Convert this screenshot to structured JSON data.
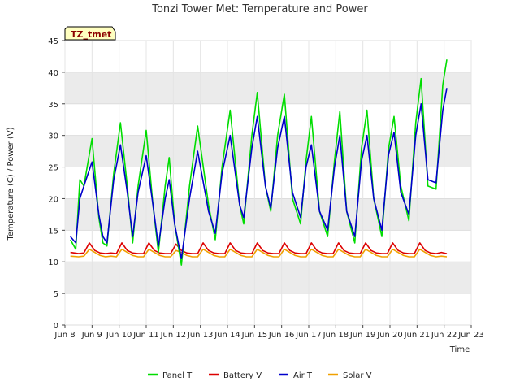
{
  "chart_data": {
    "type": "line",
    "title": "Tonzi Tower Met: Temperature and Power",
    "xlabel": "Time",
    "ylabel": "Temperature (C) / Power (V)",
    "site_tag": "TZ_tmet",
    "xlim": [
      8,
      23
    ],
    "ylim": [
      0,
      45
    ],
    "x_ticks": [
      8,
      9,
      10,
      11,
      12,
      13,
      14,
      15,
      16,
      17,
      18,
      19,
      20,
      21,
      22,
      23
    ],
    "x_tick_labels": [
      "Jun 8",
      "Jun 9",
      "Jun 10",
      "Jun 11",
      "Jun 12",
      "Jun 13",
      "Jun 14",
      "Jun 15",
      "Jun 16",
      "Jun 17",
      "Jun 18",
      "Jun 19",
      "Jun 20",
      "Jun 21",
      "Jun 22",
      "Jun 23"
    ],
    "y_ticks": [
      0,
      5,
      10,
      15,
      20,
      25,
      30,
      35,
      40,
      45
    ],
    "y_tick_labels": [
      "0",
      "5",
      "10",
      "15",
      "20",
      "25",
      "30",
      "35",
      "40",
      "45"
    ],
    "grid": true,
    "legend_position": "bottom",
    "series": [
      {
        "name": "Panel T",
        "color": "#00dd00",
        "x": [
          8.2,
          8.4,
          8.55,
          8.7,
          9.0,
          9.25,
          9.4,
          9.55,
          9.8,
          10.05,
          10.3,
          10.5,
          10.7,
          11.0,
          11.25,
          11.45,
          11.7,
          11.85,
          12.05,
          12.3,
          12.6,
          12.9,
          13.3,
          13.55,
          13.8,
          14.1,
          14.45,
          14.6,
          14.9,
          15.1,
          15.4,
          15.6,
          15.85,
          16.1,
          16.4,
          16.7,
          16.9,
          17.1,
          17.4,
          17.7,
          17.95,
          18.15,
          18.4,
          18.7,
          18.95,
          19.15,
          19.4,
          19.7,
          19.95,
          20.15,
          20.4,
          20.7,
          20.95,
          21.15,
          21.4,
          21.7,
          21.95,
          22.1
        ],
        "values": [
          13.5,
          12.0,
          23.0,
          22.0,
          29.5,
          17.0,
          13.0,
          12.5,
          24.0,
          32.0,
          22.0,
          13.0,
          22.0,
          30.8,
          19.0,
          11.5,
          22.0,
          26.5,
          16.0,
          9.5,
          22.0,
          31.5,
          19.0,
          13.5,
          25.0,
          34.0,
          19.0,
          16.0,
          30.0,
          36.8,
          22.0,
          18.0,
          30.0,
          36.5,
          20.0,
          16.0,
          26.0,
          33.0,
          18.0,
          14.0,
          26.0,
          33.8,
          18.0,
          13.0,
          28.0,
          34.0,
          20.0,
          14.0,
          28.0,
          33.0,
          22.0,
          16.5,
          32.0,
          39.0,
          22.0,
          21.5,
          38.0,
          42.0
        ]
      },
      {
        "name": "Battery V",
        "color": "#dd0000",
        "x": [
          8.2,
          8.5,
          8.7,
          8.9,
          9.1,
          9.3,
          9.5,
          9.7,
          9.9,
          10.1,
          10.3,
          10.5,
          10.7,
          10.9,
          11.1,
          11.3,
          11.5,
          11.7,
          11.9,
          12.1,
          12.3,
          12.5,
          12.7,
          12.9,
          13.1,
          13.3,
          13.5,
          13.7,
          13.9,
          14.1,
          14.3,
          14.5,
          14.7,
          14.9,
          15.1,
          15.3,
          15.5,
          15.7,
          15.9,
          16.1,
          16.3,
          16.5,
          16.7,
          16.9,
          17.1,
          17.3,
          17.5,
          17.7,
          17.9,
          18.1,
          18.3,
          18.5,
          18.7,
          18.9,
          19.1,
          19.3,
          19.5,
          19.7,
          19.9,
          20.1,
          20.3,
          20.5,
          20.7,
          20.9,
          21.1,
          21.3,
          21.5,
          21.7,
          21.9,
          22.1
        ],
        "values": [
          11.5,
          11.3,
          11.4,
          13.0,
          11.8,
          11.4,
          11.3,
          11.4,
          11.3,
          13.0,
          11.8,
          11.4,
          11.3,
          11.3,
          13.0,
          11.8,
          11.4,
          11.3,
          11.3,
          12.8,
          11.8,
          11.4,
          11.3,
          11.3,
          13.0,
          11.8,
          11.4,
          11.3,
          11.3,
          13.0,
          11.8,
          11.4,
          11.3,
          11.3,
          13.0,
          11.8,
          11.4,
          11.3,
          11.3,
          13.0,
          11.8,
          11.4,
          11.3,
          11.3,
          13.0,
          11.8,
          11.4,
          11.3,
          11.3,
          13.0,
          11.8,
          11.4,
          11.3,
          11.3,
          13.0,
          11.8,
          11.4,
          11.3,
          11.3,
          13.0,
          11.8,
          11.4,
          11.3,
          11.3,
          13.0,
          11.8,
          11.4,
          11.3,
          11.5,
          11.3
        ]
      },
      {
        "name": "Air T",
        "color": "#0000cc",
        "x": [
          8.2,
          8.4,
          8.55,
          8.7,
          9.0,
          9.25,
          9.4,
          9.55,
          9.8,
          10.05,
          10.3,
          10.5,
          10.7,
          11.0,
          11.25,
          11.45,
          11.7,
          11.85,
          12.05,
          12.3,
          12.6,
          12.9,
          13.3,
          13.55,
          13.8,
          14.1,
          14.45,
          14.6,
          14.9,
          15.1,
          15.4,
          15.6,
          15.85,
          16.1,
          16.4,
          16.7,
          16.9,
          17.1,
          17.4,
          17.7,
          17.95,
          18.15,
          18.4,
          18.7,
          18.95,
          19.15,
          19.4,
          19.7,
          19.95,
          20.15,
          20.4,
          20.7,
          20.95,
          21.15,
          21.4,
          21.7,
          21.95,
          22.1
        ],
        "values": [
          14.0,
          13.0,
          20.0,
          22.0,
          25.8,
          17.5,
          14.0,
          13.0,
          23.0,
          28.5,
          21.0,
          14.0,
          21.0,
          26.8,
          19.0,
          12.5,
          20.0,
          23.0,
          16.0,
          10.5,
          20.0,
          27.5,
          18.0,
          14.5,
          24.0,
          30.0,
          19.0,
          17.0,
          28.0,
          33.0,
          22.0,
          18.5,
          28.0,
          33.0,
          21.0,
          17.0,
          25.0,
          28.5,
          18.0,
          15.0,
          25.0,
          30.0,
          18.0,
          14.0,
          26.0,
          30.0,
          20.0,
          15.0,
          27.0,
          30.5,
          21.0,
          17.5,
          30.0,
          35.0,
          23.0,
          22.5,
          34.0,
          37.5
        ]
      },
      {
        "name": "Solar V",
        "color": "#f0a000",
        "x": [
          8.2,
          8.5,
          8.7,
          8.9,
          9.1,
          9.3,
          9.5,
          9.7,
          9.9,
          10.1,
          10.3,
          10.5,
          10.7,
          10.9,
          11.1,
          11.3,
          11.5,
          11.7,
          11.9,
          12.1,
          12.3,
          12.5,
          12.7,
          12.9,
          13.1,
          13.3,
          13.5,
          13.7,
          13.9,
          14.1,
          14.3,
          14.5,
          14.7,
          14.9,
          15.1,
          15.3,
          15.5,
          15.7,
          15.9,
          16.1,
          16.3,
          16.5,
          16.7,
          16.9,
          17.1,
          17.3,
          17.5,
          17.7,
          17.9,
          18.1,
          18.3,
          18.5,
          18.7,
          18.9,
          19.1,
          19.3,
          19.5,
          19.7,
          19.9,
          20.1,
          20.3,
          20.5,
          20.7,
          20.9,
          21.1,
          21.3,
          21.5,
          21.7,
          21.9,
          22.1
        ],
        "values": [
          10.9,
          10.8,
          10.9,
          12.0,
          11.5,
          11.0,
          10.8,
          10.9,
          10.8,
          12.0,
          11.5,
          11.0,
          10.8,
          10.8,
          12.0,
          11.5,
          11.0,
          10.8,
          10.8,
          11.8,
          11.5,
          11.0,
          10.8,
          10.8,
          12.0,
          11.5,
          11.0,
          10.8,
          10.8,
          12.0,
          11.5,
          11.0,
          10.8,
          10.8,
          12.0,
          11.5,
          11.0,
          10.8,
          10.8,
          12.0,
          11.5,
          11.0,
          10.8,
          10.8,
          12.0,
          11.5,
          11.0,
          10.8,
          10.8,
          12.0,
          11.5,
          11.0,
          10.8,
          10.8,
          12.0,
          11.5,
          11.0,
          10.8,
          10.8,
          12.0,
          11.5,
          11.0,
          10.8,
          10.8,
          12.0,
          11.5,
          11.0,
          10.8,
          10.9,
          10.8
        ]
      }
    ]
  }
}
